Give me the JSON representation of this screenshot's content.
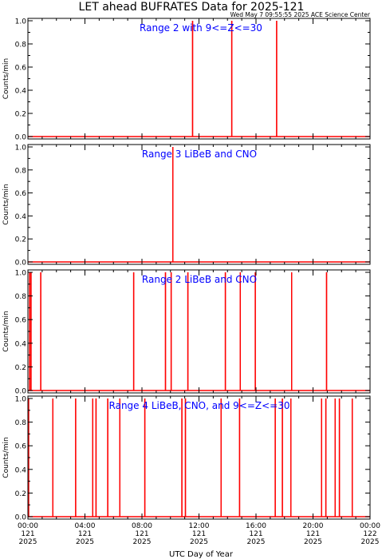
{
  "title": "LET ahead BUFRATES Data for 2025-121",
  "timestamp": "Wed May  7 09:55:55 2025 ACE Science Center",
  "xlabel": "UTC Day of Year",
  "colors": {
    "axes": "#000000",
    "data": "#ff0000",
    "label": "#0000ff"
  },
  "chart_data": [
    {
      "type": "line",
      "label": "Range 2 with 9<=Z<=30",
      "ylabel": "Counts/min",
      "ylim": [
        0,
        1
      ],
      "xlim": [
        0,
        24
      ],
      "yticks": [
        "0.0",
        "0.2",
        "0.4",
        "0.6",
        "0.8",
        "1.0"
      ],
      "spike_times_hours": [
        11.55,
        14.3,
        17.45
      ]
    },
    {
      "type": "line",
      "label": "Range 3 LiBeB and CNO",
      "ylabel": "Counts/min",
      "ylim": [
        0,
        1
      ],
      "xlim": [
        0,
        24
      ],
      "yticks": [
        "0.0",
        "0.2",
        "0.4",
        "0.6",
        "0.8",
        "1.0"
      ],
      "spike_times_hours": [
        10.17
      ]
    },
    {
      "type": "line",
      "label": "Range 2 LiBeB and CNO",
      "ylabel": "Counts/min",
      "ylim": [
        0,
        1
      ],
      "xlim": [
        0,
        24
      ],
      "yticks": [
        "0.0",
        "0.2",
        "0.4",
        "0.6",
        "0.8",
        "1.0"
      ],
      "spike_times_hours": [
        0.12,
        0.22,
        0.9,
        7.42,
        9.65,
        10.05,
        11.22,
        13.85,
        14.9,
        15.95,
        18.5,
        20.95
      ]
    },
    {
      "type": "line",
      "label": "Range 4 LiBeB, CNO, and 9<=Z<=30",
      "ylabel": "Counts/min",
      "ylim": [
        0,
        1
      ],
      "xlim": [
        0,
        24
      ],
      "yticks": [
        "0.0",
        "0.2",
        "0.4",
        "0.6",
        "0.8",
        "1.0"
      ],
      "spike_times_hours": [
        0.05,
        1.75,
        3.35,
        4.55,
        4.78,
        5.6,
        6.45,
        8.2,
        10.8,
        11.05,
        13.55,
        14.85,
        17.35,
        17.85,
        18.45,
        20.6,
        20.9,
        21.55,
        21.85,
        22.75
      ]
    }
  ],
  "xticks": [
    {
      "time": "00:00",
      "day": "121",
      "year": "2025"
    },
    {
      "time": "04:00",
      "day": "121",
      "year": "2025"
    },
    {
      "time": "08:00",
      "day": "121",
      "year": "2025"
    },
    {
      "time": "12:00",
      "day": "121",
      "year": "2025"
    },
    {
      "time": "16:00",
      "day": "121",
      "year": "2025"
    },
    {
      "time": "20:00",
      "day": "121",
      "year": "2025"
    },
    {
      "time": "00:00",
      "day": "122",
      "year": "2025"
    }
  ]
}
